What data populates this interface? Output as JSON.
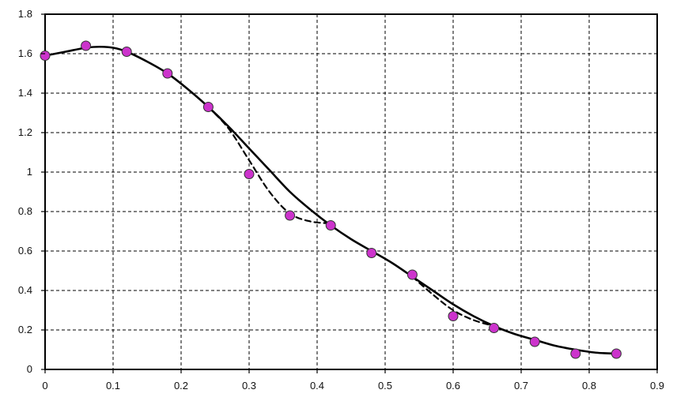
{
  "chart_data": {
    "type": "line",
    "title": "",
    "xlabel": "",
    "ylabel": "",
    "xlim": [
      0,
      0.9
    ],
    "ylim": [
      0,
      1.8
    ],
    "x_ticks": [
      "0",
      "0.1",
      "0.2",
      "0.3",
      "0.4",
      "0.5",
      "0.6",
      "0.7",
      "0.8",
      "0.9"
    ],
    "y_ticks": [
      "0",
      "0.2",
      "0.4",
      "0.6",
      "0.8",
      "1",
      "1.2",
      "1.4",
      "1.6",
      "1.8"
    ],
    "grid": true,
    "legend": "none",
    "series": [
      {
        "style": "solid",
        "color": "#000000",
        "x": [
          0,
          0.03,
          0.06,
          0.08,
          0.1,
          0.12,
          0.15,
          0.18,
          0.21,
          0.24,
          0.27,
          0.3,
          0.33,
          0.36,
          0.39,
          0.42,
          0.45,
          0.48,
          0.51,
          0.54,
          0.57,
          0.6,
          0.63,
          0.66,
          0.69,
          0.72,
          0.75,
          0.78,
          0.81,
          0.84
        ],
        "y": [
          1.59,
          1.61,
          1.63,
          1.635,
          1.63,
          1.61,
          1.56,
          1.5,
          1.42,
          1.33,
          1.23,
          1.12,
          1.01,
          0.9,
          0.81,
          0.73,
          0.66,
          0.6,
          0.54,
          0.47,
          0.4,
          0.33,
          0.27,
          0.22,
          0.18,
          0.15,
          0.12,
          0.1,
          0.085,
          0.08
        ]
      },
      {
        "style": "dashed",
        "color": "#000000",
        "x": [
          0.24,
          0.27,
          0.3,
          0.33,
          0.36,
          0.39,
          0.42
        ],
        "y": [
          1.33,
          1.22,
          1.06,
          0.9,
          0.79,
          0.75,
          0.74
        ]
      },
      {
        "style": "dashed",
        "color": "#000000",
        "x": [
          0.54,
          0.57,
          0.6,
          0.63,
          0.66
        ],
        "y": [
          0.47,
          0.38,
          0.3,
          0.25,
          0.22
        ]
      },
      {
        "style": "markers",
        "color": "#cc33cc",
        "x": [
          0,
          0.06,
          0.12,
          0.18,
          0.24,
          0.3,
          0.36,
          0.42,
          0.48,
          0.54,
          0.6,
          0.66,
          0.72,
          0.78,
          0.84
        ],
        "y": [
          1.59,
          1.64,
          1.61,
          1.5,
          1.33,
          0.99,
          0.78,
          0.73,
          0.59,
          0.48,
          0.27,
          0.21,
          0.14,
          0.08,
          0.08
        ]
      }
    ]
  }
}
